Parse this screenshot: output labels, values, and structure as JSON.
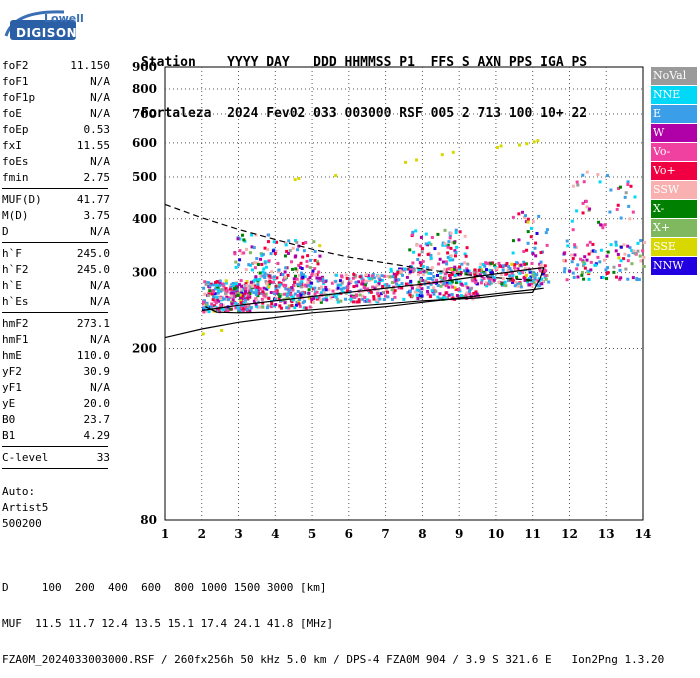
{
  "logo": {
    "top": "Lowell",
    "bottom": "DIGISONDE"
  },
  "header": {
    "row1": "Station    YYYY DAY   DDD HHMMSS P1  FFS S AXN PPS IGA PS",
    "row2": "Fortaleza  2024 Fev02 033 003000 RSF 005 2 713 100 10+ 22"
  },
  "params_groups": [
    [
      {
        "k": "foF2",
        "v": "11.150"
      },
      {
        "k": "foF1",
        "v": "N/A"
      },
      {
        "k": "foF1p",
        "v": "N/A"
      },
      {
        "k": "foE",
        "v": "N/A"
      },
      {
        "k": "foEp",
        "v": "0.53"
      },
      {
        "k": "fxI",
        "v": "11.55"
      },
      {
        "k": "foEs",
        "v": "N/A"
      },
      {
        "k": "fmin",
        "v": "2.75"
      }
    ],
    [
      {
        "k": "MUF(D)",
        "v": "41.77"
      },
      {
        "k": "M(D)",
        "v": "3.75"
      },
      {
        "k": "D",
        "v": "N/A"
      }
    ],
    [
      {
        "k": "h`F",
        "v": "245.0"
      },
      {
        "k": "h`F2",
        "v": "245.0"
      },
      {
        "k": "h`E",
        "v": "N/A"
      },
      {
        "k": "h`Es",
        "v": "N/A"
      }
    ],
    [
      {
        "k": "hmF2",
        "v": "273.1"
      },
      {
        "k": "hmF1",
        "v": "N/A"
      },
      {
        "k": "hmE",
        "v": "110.0"
      },
      {
        "k": "yF2",
        "v": "30.9"
      },
      {
        "k": "yF1",
        "v": "N/A"
      },
      {
        "k": "yE",
        "v": "20.0"
      },
      {
        "k": "B0",
        "v": "23.7"
      },
      {
        "k": "B1",
        "v": "4.29"
      }
    ],
    [
      {
        "k": "C-level",
        "v": "33"
      }
    ]
  ],
  "auto": {
    "line1": "Auto:",
    "line2": "Artist5",
    "line3": "500200"
  },
  "legend": [
    {
      "label": "NoVal",
      "color": "#9a9a9a"
    },
    {
      "label": "NNE",
      "color": "#00d8f8"
    },
    {
      "label": "E",
      "color": "#3a9ee8"
    },
    {
      "label": "W",
      "color": "#b000a8"
    },
    {
      "label": "Vo-",
      "color": "#f040a0"
    },
    {
      "label": "Vo+",
      "color": "#f00040"
    },
    {
      "label": "SSW",
      "color": "#f8b0b0"
    },
    {
      "label": "X-",
      "color": "#008000"
    },
    {
      "label": "X+",
      "color": "#80b860"
    },
    {
      "label": "SSE",
      "color": "#d8d800"
    },
    {
      "label": "NNW",
      "color": "#2000e0"
    }
  ],
  "footer": {
    "line1": "D     100  200  400  600  800 1000 1500 3000 [km]",
    "line2": "MUF  11.5 11.7 12.4 13.5 15.1 17.4 24.1 41.8 [MHz]",
    "line3": "FZA0M_2024033003000.RSF / 260fx256h 50 kHz 5.0 km / DPS-4 FZA0M 904 / 3.9 S 321.6 E   Ion2Png 1.3.20"
  },
  "chart_data": {
    "type": "scatter",
    "xlim": [
      1,
      14
    ],
    "ylim": [
      80,
      900
    ],
    "y_scale": "log",
    "x_ticks": [
      1,
      2,
      3,
      4,
      5,
      6,
      7,
      8,
      9,
      10,
      11,
      12,
      13,
      14
    ],
    "y_ticks": [
      80,
      200,
      300,
      400,
      500,
      600,
      700,
      800,
      900
    ],
    "grid": "dotted",
    "trace_solid": [
      [
        2.0,
        245
      ],
      [
        3,
        252
      ],
      [
        4,
        258
      ],
      [
        5,
        264
      ],
      [
        6,
        270
      ],
      [
        7,
        276
      ],
      [
        8,
        282
      ],
      [
        9,
        290
      ],
      [
        10,
        298
      ],
      [
        11,
        306
      ],
      [
        11.3,
        308
      ],
      [
        11.2,
        290
      ],
      [
        11.0,
        270
      ],
      [
        10.5,
        268
      ],
      [
        9.5,
        262
      ],
      [
        8,
        258
      ],
      [
        7,
        254
      ],
      [
        6,
        250
      ],
      [
        5,
        246
      ],
      [
        4,
        243
      ],
      [
        3,
        242
      ],
      [
        2.4,
        243
      ],
      [
        2.1,
        250
      ]
    ],
    "trace_dashed": [
      [
        1,
        432
      ],
      [
        2,
        402
      ],
      [
        3,
        378
      ],
      [
        4,
        358
      ],
      [
        5,
        340
      ],
      [
        6,
        326
      ],
      [
        7,
        316
      ],
      [
        8,
        306
      ],
      [
        9,
        298
      ],
      [
        10,
        292
      ],
      [
        11,
        288
      ]
    ],
    "trace_lower": [
      [
        1,
        212
      ],
      [
        2,
        222
      ],
      [
        3,
        230
      ],
      [
        4,
        236
      ],
      [
        5,
        242
      ],
      [
        6,
        246
      ],
      [
        7,
        250
      ],
      [
        8,
        256
      ],
      [
        9,
        262
      ],
      [
        10,
        268
      ],
      [
        11,
        274
      ],
      [
        11.3,
        276
      ]
    ],
    "clusters": [
      {
        "x": [
          2.0,
          3.3
        ],
        "y": [
          245,
          290
        ],
        "n": 260
      },
      {
        "x": [
          3.3,
          5.0
        ],
        "y": [
          250,
          300
        ],
        "n": 240
      },
      {
        "x": [
          5.0,
          7.0
        ],
        "y": [
          258,
          300
        ],
        "n": 200
      },
      {
        "x": [
          7.0,
          9.5
        ],
        "y": [
          262,
          310
        ],
        "n": 260
      },
      {
        "x": [
          9.5,
          11.4
        ],
        "y": [
          280,
          320
        ],
        "n": 180
      },
      {
        "x": [
          2.8,
          4.0
        ],
        "y": [
          300,
          370
        ],
        "n": 60
      },
      {
        "x": [
          4.0,
          5.2
        ],
        "y": [
          300,
          360
        ],
        "n": 50
      },
      {
        "x": [
          7.6,
          9.2
        ],
        "y": [
          310,
          380
        ],
        "n": 80
      },
      {
        "x": [
          11.8,
          14.0
        ],
        "y": [
          290,
          360
        ],
        "n": 110
      },
      {
        "x": [
          12.0,
          13.8
        ],
        "y": [
          380,
          520
        ],
        "n": 40
      },
      {
        "x": [
          10.4,
          11.4
        ],
        "y": [
          330,
          420
        ],
        "n": 30
      }
    ],
    "sse_points": [
      [
        2,
        218
      ],
      [
        2.5,
        222
      ],
      [
        4.5,
        497
      ],
      [
        4.6,
        500
      ],
      [
        5.6,
        508
      ],
      [
        7.5,
        545
      ],
      [
        7.8,
        552
      ],
      [
        8.5,
        568
      ],
      [
        8.8,
        575
      ],
      [
        10.0,
        590
      ],
      [
        10.1,
        595
      ],
      [
        10.6,
        598
      ],
      [
        10.8,
        602
      ],
      [
        11.0,
        608
      ],
      [
        11.1,
        612
      ]
    ]
  }
}
